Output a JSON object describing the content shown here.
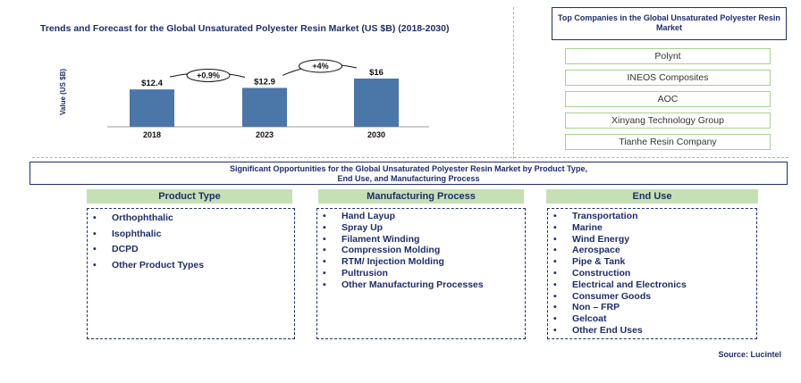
{
  "chart_data": {
    "type": "bar",
    "title": "Trends and Forecast for the Global Unsaturated Polyester Resin Market  (US $B) (2018-2030)",
    "ylabel": "Value (US $B)",
    "categories": [
      "2018",
      "2023",
      "2030"
    ],
    "values": [
      12.4,
      12.9,
      16
    ],
    "value_labels": [
      "$12.4",
      "$12.9",
      "$16"
    ],
    "growth_annotations": [
      "+0.9%",
      "+4%"
    ],
    "bar_color": "#4a76a8",
    "ylim": [
      0,
      16
    ]
  },
  "companies": {
    "title": "Top Companies in the Global Unsaturated Polyester Resin Market",
    "items": [
      "Polynt",
      "INEOS Composites",
      "AOC",
      "Xinyang Technology Group",
      "Tianhe Resin Company"
    ]
  },
  "opportunities": {
    "line1": "Significant Opportunities for the Global Unsaturated Polyester Resin Market by Product Type,",
    "line2": "End Use, and Manufacturing Process"
  },
  "product_type": {
    "header": "Product Type",
    "items": [
      "Orthophthalic",
      "Isophthalic",
      "DCPD",
      "Other Product Types"
    ]
  },
  "manufacturing_process": {
    "header": "Manufacturing Process",
    "items": [
      "Hand Layup",
      "Spray Up",
      "Filament Winding",
      "Compression Molding",
      "RTM/ Injection Molding",
      "Pultrusion",
      "Other Manufacturing Processes"
    ]
  },
  "end_use": {
    "header": "End Use",
    "items": [
      "Transportation",
      "Marine",
      "Wind Energy",
      "Aerospace",
      "Pipe & Tank",
      "Construction",
      "Electrical and Electronics",
      "Consumer Goods",
      "Non – FRP",
      "Gelcoat",
      "Other End Uses"
    ]
  },
  "source": "Source: Lucintel",
  "colors": {
    "navy": "#1f2d6b",
    "green_header": "#c5e0b4",
    "green_border": "#a9d08e",
    "separator": "#f0b400"
  }
}
